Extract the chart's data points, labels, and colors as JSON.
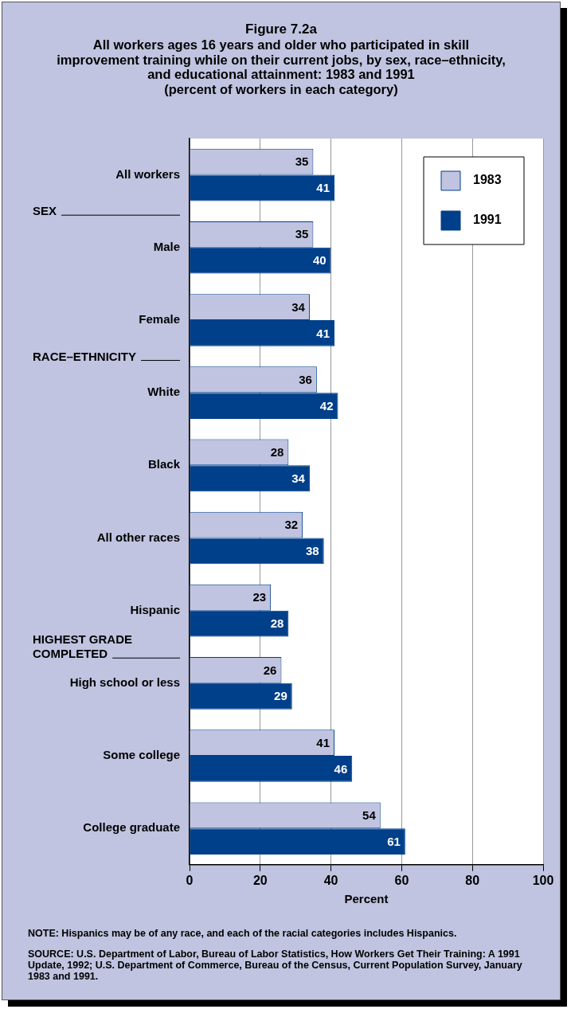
{
  "chart_data": {
    "type": "bar",
    "orientation": "horizontal",
    "title": "Figure 7.2a",
    "subtitle": "All workers ages 16 years and older who participated in skill improvement training while on their current jobs, by sex, race–ethnicity, and educational attainment: 1983 and 1991\n(percent of workers in each category)",
    "categories": [
      "All workers",
      "Male",
      "Female",
      "White",
      "Black",
      "All other races",
      "Hispanic",
      "High school or less",
      "Some college",
      "College graduate"
    ],
    "series": [
      {
        "name": "1983",
        "color": "#c0c4e0",
        "values": [
          35,
          35,
          34,
          36,
          28,
          32,
          23,
          26,
          41,
          54
        ]
      },
      {
        "name": "1991",
        "color": "#003f8a",
        "values": [
          41,
          40,
          41,
          42,
          34,
          38,
          28,
          29,
          46,
          61
        ]
      }
    ],
    "xlabel": "Percent",
    "xlim": [
      0,
      100
    ],
    "xticks": [
      0,
      20,
      40,
      60,
      80,
      100
    ],
    "grid": "x",
    "legend": "top right",
    "data_labels": true,
    "annotations": [
      "SEX",
      "RACE–ETHNICITY",
      "HIGHEST GRADE COMPLETED",
      "NOTE: Hispanics may be of any race, and each of the racial categories includes Hispanics.",
      "SOURCE: U.S. Department of Labor, Bureau of Labor Statistics, How Workers Get Their Training: A 1991 Update, 1992; U.S. Department of Commerce, Bureau of the Census, Current Population Survey, January 1983 and 1991."
    ]
  }
}
